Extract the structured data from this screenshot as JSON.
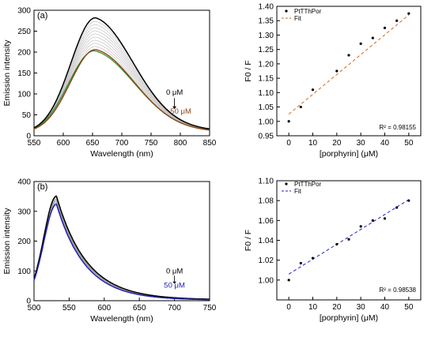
{
  "chart_data": [
    {
      "id": "a_left",
      "panel_label": "(a)",
      "type": "line",
      "xlabel": "Wavelength (nm)",
      "ylabel": "Emission intensity",
      "xlim": [
        550,
        850
      ],
      "ylim": [
        0,
        300
      ],
      "xticks": [
        550,
        600,
        650,
        700,
        750,
        800,
        850
      ],
      "yticks": [
        0,
        50,
        100,
        150,
        200,
        250,
        300
      ],
      "peak_wavelength": 655,
      "series": [
        {
          "color": "#000000",
          "peak": 275
        },
        {
          "color": "#8B4513",
          "peak": 200
        },
        {
          "color": "#2e8b2e",
          "peak": 198
        }
      ],
      "intermediate_curve_count": 9,
      "annotations": {
        "top": "0 μM",
        "bottom": "50 μM"
      },
      "colors": {
        "top": "#000000",
        "bottom": "#8B4513"
      }
    },
    {
      "id": "a_right",
      "type": "scatter",
      "xlabel": "[porphyrin] (μM)",
      "ylabel": "F0 / F",
      "xlim": [
        -5,
        55
      ],
      "ylim": [
        0.95,
        1.4
      ],
      "xticks": [
        0,
        10,
        20,
        30,
        40,
        50
      ],
      "yticks": [
        0.95,
        1.0,
        1.05,
        1.1,
        1.15,
        1.2,
        1.25,
        1.3,
        1.35,
        1.4
      ],
      "x": [
        0,
        5,
        10,
        20,
        25,
        30,
        35,
        40,
        45,
        50
      ],
      "y": [
        1.0,
        1.05,
        1.11,
        1.175,
        1.23,
        1.27,
        1.29,
        1.325,
        1.35,
        1.375
      ],
      "fit": [
        [
          0,
          1.025
        ],
        [
          50,
          1.37
        ]
      ],
      "legend": {
        "points": "PtTThPor",
        "fit": "Fit"
      },
      "fit_color": "#d2691e",
      "r2": "R² = 0.98155"
    },
    {
      "id": "b_left",
      "panel_label": "(b)",
      "type": "line",
      "xlabel": "Wavelength (nm)",
      "ylabel": "Emission intensity",
      "xlim": [
        500,
        750
      ],
      "ylim": [
        0,
        400
      ],
      "xticks": [
        500,
        550,
        600,
        650,
        700,
        750
      ],
      "yticks": [
        0,
        100,
        200,
        300,
        400
      ],
      "peak_wavelength": 532,
      "series": [
        {
          "color": "#000000",
          "peak": 348
        },
        {
          "color": "#1f1fb4",
          "peak": 322
        }
      ],
      "intermediate_curve_count": 5,
      "annotations": {
        "top": "0 μM",
        "bottom": "50 μM"
      },
      "colors": {
        "top": "#000000",
        "bottom": "#1f1fb4"
      }
    },
    {
      "id": "b_right",
      "type": "scatter",
      "xlabel": "[porphyrin] (μM)",
      "ylabel": "F0 / F",
      "xlim": [
        -5,
        55
      ],
      "ylim": [
        0.98,
        1.1
      ],
      "xticks": [
        0,
        10,
        20,
        30,
        40,
        50
      ],
      "yticks": [
        1.0,
        1.02,
        1.04,
        1.06,
        1.08,
        1.1
      ],
      "x": [
        0,
        5,
        10,
        20,
        25,
        30,
        35,
        40,
        45,
        50
      ],
      "y": [
        1.0,
        1.017,
        1.022,
        1.036,
        1.041,
        1.054,
        1.06,
        1.062,
        1.073,
        1.08
      ],
      "fit": [
        [
          0,
          1.006
        ],
        [
          50,
          1.081
        ]
      ],
      "legend": {
        "points": "PtTThPor",
        "fit": "Fit"
      },
      "fit_color": "#1f1fd0",
      "r2": "R² = 0.98538"
    }
  ]
}
